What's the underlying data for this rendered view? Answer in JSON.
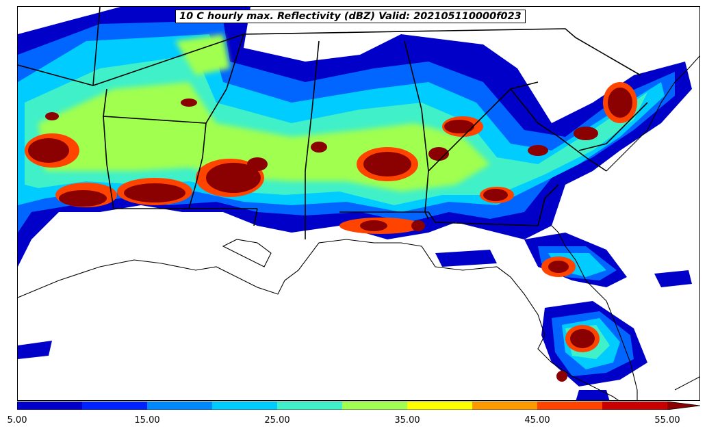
{
  "title": "10 C hourly max. Reflectivity (dBZ) Valid: 202105110000f023",
  "colorbar": {
    "bins": [
      5,
      10,
      15,
      20,
      25,
      30,
      35,
      40,
      45,
      50,
      55
    ],
    "colors": [
      "#0000c8",
      "#0022ff",
      "#0088ff",
      "#00ccff",
      "#40f0c8",
      "#a0ff50",
      "#ffff00",
      "#ff9900",
      "#ff4400",
      "#c80000"
    ],
    "extend_color": "#8b0000",
    "tick_labels": [
      "5.00",
      "15.00",
      "25.00",
      "35.00",
      "45.00",
      "55.00"
    ]
  }
}
